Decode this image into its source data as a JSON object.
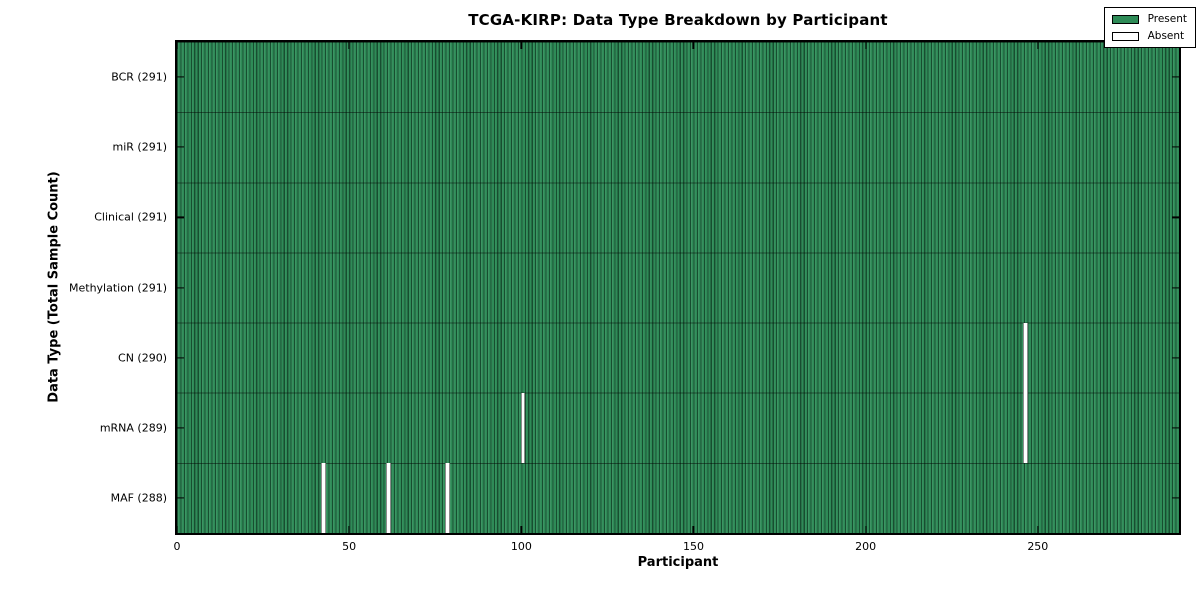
{
  "chart_data": {
    "type": "heatmap",
    "title": "TCGA-KIRP: Data Type Breakdown by Participant",
    "xlabel": "Participant",
    "ylabel": "Data Type (Total Sample Count)",
    "n_participants": 291,
    "x_range": [
      0,
      291
    ],
    "x_ticks": [
      0,
      50,
      100,
      150,
      200,
      250
    ],
    "grid": false,
    "legend_position": "upper right",
    "legend": {
      "entries": [
        {
          "label": "Present",
          "color": "#2e8b57"
        },
        {
          "label": "Absent",
          "color": "#ffffff"
        }
      ]
    },
    "colors": {
      "present": "#2e8b57",
      "absent": "#ffffff",
      "edge": "#000000",
      "background": "#ffffff"
    },
    "rows": [
      {
        "name": "BCR",
        "label": "BCR (291)",
        "count": 291,
        "absent_participants": []
      },
      {
        "name": "miR",
        "label": "miR (291)",
        "count": 291,
        "absent_participants": []
      },
      {
        "name": "Clinical",
        "label": "Clinical (291)",
        "count": 291,
        "absent_participants": []
      },
      {
        "name": "Methylation",
        "label": "Methylation (291)",
        "count": 291,
        "absent_participants": []
      },
      {
        "name": "CN",
        "label": "CN (290)",
        "count": 290,
        "absent_participants": [
          246
        ]
      },
      {
        "name": "mRNA",
        "label": "mRNA (289)",
        "count": 289,
        "absent_participants": [
          100,
          246
        ]
      },
      {
        "name": "MAF",
        "label": "MAF (288)",
        "count": 288,
        "absent_participants": [
          42,
          61,
          78
        ]
      }
    ]
  }
}
